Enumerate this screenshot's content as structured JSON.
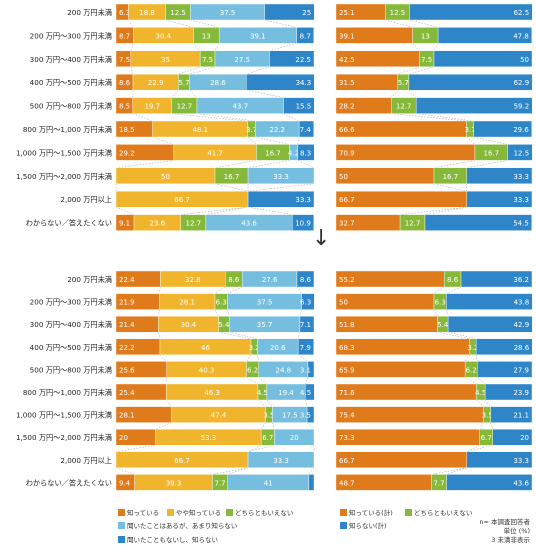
{
  "colors": {
    "know": "#E07B1C",
    "somewhat": "#F0B52C",
    "neither": "#86B93A",
    "heard": "#76BEDF",
    "never": "#2E86C8",
    "know_total": "#E07B1C",
    "dont_know_total": "#2E86C8"
  },
  "arrow_symbol": "↓",
  "legend": {
    "left": [
      {
        "label": "知っている",
        "color_key": "know"
      },
      {
        "label": "やや知っている",
        "color_key": "somewhat"
      },
      {
        "label": "どちらともいえない",
        "color_key": "neither"
      },
      {
        "label": "聞いたことはあるが、あまり知らない",
        "color_key": "heard"
      },
      {
        "label": "聞いたこともないし、知らない",
        "color_key": "never"
      }
    ],
    "right": [
      {
        "label": "知っている(計)",
        "color_key": "know_total"
      },
      {
        "label": "どちらともいえない",
        "color_key": "neither"
      },
      {
        "label": "知らない(計)",
        "color_key": "dont_know_total"
      }
    ]
  },
  "notes": {
    "line1": "n= 本調査回答者",
    "line2": "単位 (%)",
    "line3": "3 未満非表示"
  },
  "chart_data": [
    {
      "type": "bar",
      "orientation": "horizontal-stacked",
      "categories": [
        "200 万円未満",
        "200 万円～300 万円未満",
        "300 万円～400 万円未満",
        "400 万円～500 万円未満",
        "500 万円～800 万円未満",
        "800 万円～1,000 万円未満",
        "1,000 万円～1,500 万円未満",
        "1,500 万円～2,000 万円未満",
        "2,000 万円以上",
        "わからない／答えたくない"
      ],
      "series": [
        {
          "name": "知っている",
          "values": [
            6.3,
            8.7,
            7.5,
            8.6,
            8.5,
            18.5,
            29.2,
            0,
            0,
            9.1
          ]
        },
        {
          "name": "やや知っている",
          "values": [
            18.8,
            30.4,
            35.0,
            22.9,
            19.7,
            48.1,
            41.7,
            50.0,
            66.7,
            23.6
          ]
        },
        {
          "name": "どちらともいえない",
          "values": [
            12.5,
            13.0,
            7.5,
            5.7,
            12.7,
            3.7,
            16.7,
            16.7,
            0,
            12.7
          ]
        },
        {
          "name": "聞いたことはあるが、あまり知らない",
          "values": [
            37.5,
            39.1,
            27.5,
            28.6,
            43.7,
            22.2,
            4.2,
            33.3,
            0,
            43.6
          ]
        },
        {
          "name": "聞いたこともないし、知らない",
          "values": [
            25.0,
            8.7,
            22.5,
            34.3,
            15.5,
            7.4,
            8.3,
            0,
            33.3,
            10.9
          ]
        }
      ],
      "xlim": [
        0,
        100
      ]
    },
    {
      "type": "bar",
      "orientation": "horizontal-stacked",
      "categories": [
        "200 万円未満",
        "200 万円～300 万円未満",
        "300 万円～400 万円未満",
        "400 万円～500 万円未満",
        "500 万円～800 万円未満",
        "800 万円～1,000 万円未満",
        "1,000 万円～1,500 万円未満",
        "1,500 万円～2,000 万円未満",
        "2,000 万円以上",
        "わからない／答えたくない"
      ],
      "series": [
        {
          "name": "知っている(計)",
          "values": [
            25.1,
            39.1,
            42.5,
            31.5,
            28.2,
            66.6,
            70.9,
            50.0,
            66.7,
            32.7
          ]
        },
        {
          "name": "どちらともいえない",
          "values": [
            12.5,
            13.0,
            7.5,
            5.7,
            12.7,
            3.7,
            16.7,
            16.7,
            0,
            12.7
          ]
        },
        {
          "name": "知らない(計)",
          "values": [
            62.5,
            47.8,
            50,
            62.9,
            59.2,
            29.6,
            12.5,
            33.3,
            33.3,
            54.5
          ]
        }
      ],
      "xlim": [
        0,
        100
      ]
    },
    {
      "type": "bar",
      "orientation": "horizontal-stacked",
      "categories": [
        "200 万円未満",
        "200 万円～300 万円未満",
        "300 万円～400 万円未満",
        "400 万円～500 万円未満",
        "500 万円～800 万円未満",
        "800 万円～1,000 万円未満",
        "1,000 万円～1,500 万円未満",
        "1,500 万円～2,000 万円未満",
        "2,000 万円以上",
        "わからない／答えたくない"
      ],
      "series": [
        {
          "name": "知っている",
          "values": [
            22.4,
            21.9,
            21.4,
            22.2,
            25.6,
            25.4,
            28.1,
            20.0,
            0,
            9.4
          ]
        },
        {
          "name": "やや知っている",
          "values": [
            32.8,
            28.1,
            30.4,
            46.0,
            40.3,
            46.3,
            47.4,
            53.3,
            66.7,
            39.3
          ]
        },
        {
          "name": "どちらともいえない",
          "values": [
            8.6,
            6.3,
            5.4,
            3.2,
            6.2,
            4.5,
            3.5,
            6.7,
            0,
            7.7
          ]
        },
        {
          "name": "聞いたことはあるが、あまり知らない",
          "values": [
            27.6,
            37.5,
            35.7,
            20.6,
            24.8,
            19.4,
            17.5,
            20.0,
            33.3,
            41.0
          ]
        },
        {
          "name": "聞いたこともないし、知らない",
          "values": [
            8.6,
            6.3,
            7.1,
            7.9,
            3.1,
            4.5,
            3.5,
            0,
            0,
            2.6
          ]
        }
      ],
      "xlim": [
        0,
        100
      ]
    },
    {
      "type": "bar",
      "orientation": "horizontal-stacked",
      "categories": [
        "200 万円未満",
        "200 万円～300 万円未満",
        "300 万円～400 万円未満",
        "400 万円～500 万円未満",
        "500 万円～800 万円未満",
        "800 万円～1,000 万円未満",
        "1,000 万円～1,500 万円未満",
        "1,500 万円～2,000 万円未満",
        "2,000 万円以上",
        "わからない／答えたくない"
      ],
      "series": [
        {
          "name": "知っている(計)",
          "values": [
            55.2,
            50.0,
            51.8,
            68.3,
            65.9,
            71.6,
            75.4,
            73.3,
            66.7,
            48.7
          ]
        },
        {
          "name": "どちらともいえない",
          "values": [
            8.6,
            6.3,
            5.4,
            3.2,
            6.2,
            4.5,
            3.5,
            6.7,
            0,
            7.7
          ]
        },
        {
          "name": "知らない(計)",
          "values": [
            36.2,
            43.8,
            42.9,
            28.6,
            27.9,
            23.9,
            21.1,
            20.0,
            33.3,
            43.6
          ]
        }
      ],
      "xlim": [
        0,
        100
      ]
    }
  ]
}
